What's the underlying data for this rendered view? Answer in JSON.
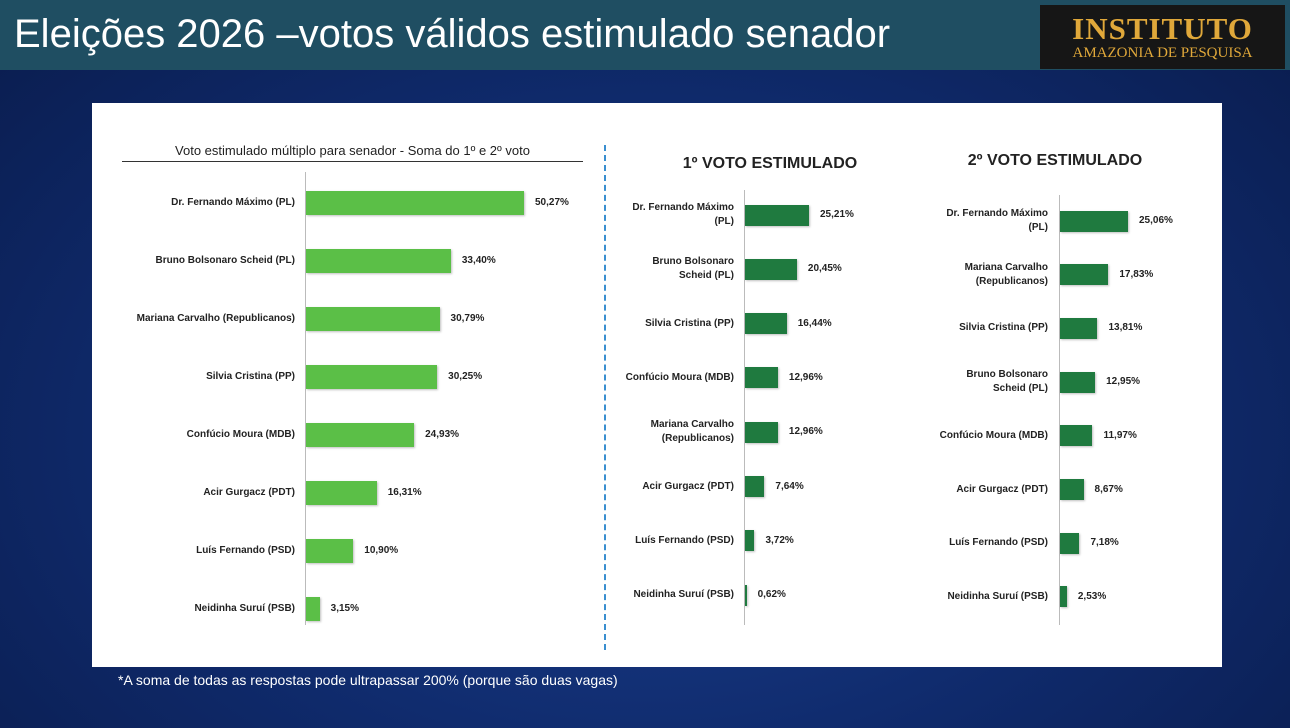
{
  "title": "Eleições 2026 –votos válidos estimulado senador",
  "logo": {
    "line1": "INSTITUTO",
    "line2": "AMAZONIA DE PESQUISA"
  },
  "footnote": "*A soma de todas as respostas pode ultrapassar 200% (porque são duas vagas)",
  "chart_data": [
    {
      "type": "bar",
      "orientation": "horizontal",
      "title": "Voto estimulado múltiplo para senador - Soma do 1º e 2º voto",
      "categories": [
        "Dr. Fernando Máximo (PL)",
        "Bruno Bolsonaro Scheid (PL)",
        "Mariana Carvalho (Republicanos)",
        "Silvia Cristina (PP)",
        "Confúcio Moura (MDB)",
        "Acir Gurgacz (PDT)",
        "Luís Fernando (PSD)",
        "Neidinha Suruí (PSB)"
      ],
      "values": [
        50.27,
        33.4,
        30.79,
        30.25,
        24.93,
        16.31,
        10.9,
        3.15
      ],
      "value_labels": [
        "50,27%",
        "33,40%",
        "30,79%",
        "30,25%",
        "24,93%",
        "16,31%",
        "10,90%",
        "3,15%"
      ],
      "color": "#5bbf47"
    },
    {
      "type": "bar",
      "orientation": "horizontal",
      "title": "1º VOTO ESTIMULADO",
      "categories": [
        "Dr. Fernando Máximo\n(PL)",
        "Bruno Bolsonaro\nScheid (PL)",
        "Silvia Cristina (PP)",
        "Confúcio Moura (MDB)",
        "Mariana Carvalho\n(Republicanos)",
        "Acir Gurgacz (PDT)",
        "Luís Fernando (PSD)",
        "Neidinha Suruí (PSB)"
      ],
      "values": [
        25.21,
        20.45,
        16.44,
        12.96,
        12.96,
        7.64,
        3.72,
        0.62
      ],
      "value_labels": [
        "25,21%",
        "20,45%",
        "16,44%",
        "12,96%",
        "12,96%",
        "7,64%",
        "3,72%",
        "0,62%"
      ],
      "color": "#1f7a3f"
    },
    {
      "type": "bar",
      "orientation": "horizontal",
      "title": "2º VOTO ESTIMULADO",
      "categories": [
        "Dr. Fernando Máximo\n(PL)",
        "Mariana Carvalho\n(Republicanos)",
        "Silvia Cristina (PP)",
        "Bruno Bolsonaro\nScheid (PL)",
        "Confúcio Moura (MDB)",
        "Acir Gurgacz (PDT)",
        "Luís Fernando (PSD)",
        "Neidinha Suruí (PSB)"
      ],
      "values": [
        25.06,
        17.83,
        13.81,
        12.95,
        11.97,
        8.67,
        7.18,
        2.53
      ],
      "value_labels": [
        "25,06%",
        "17,83%",
        "13,81%",
        "12,95%",
        "11,97%",
        "8,67%",
        "7,18%",
        "2,53%"
      ],
      "color": "#1f7a3f"
    }
  ]
}
